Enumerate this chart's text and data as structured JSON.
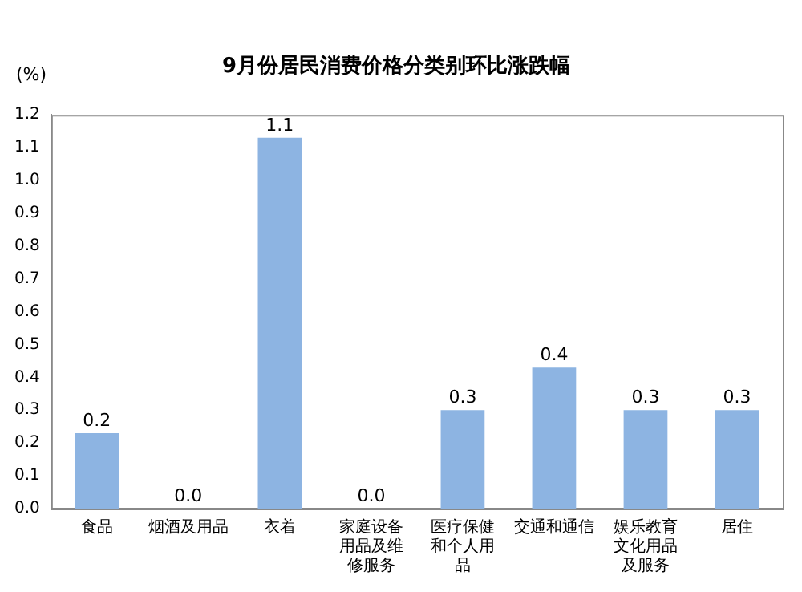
{
  "chart_data": {
    "type": "bar",
    "title": "9月份居民消费价格分类别环比涨跌幅",
    "ylabel": "(%)",
    "categories": [
      "食品",
      "烟酒及用品",
      "衣着",
      "家庭设备用品及维修服务",
      "医疗保健和个人用品",
      "交通和通信",
      "娱乐教育文化用品及服务",
      "居住"
    ],
    "values": [
      0.23,
      0,
      1.13,
      0,
      0.3,
      0.43,
      0.3,
      0.3
    ],
    "value_labels": [
      "0.2",
      "0.0",
      "1.1",
      "0.0",
      "0.3",
      "0.4",
      "0.3",
      "0.3"
    ],
    "color": "#8db4e2",
    "ylim": [
      0,
      1.2
    ],
    "yticks": [
      {
        "value": 0,
        "label": "0.0"
      },
      0.1,
      0.2,
      0.3,
      0.4,
      0.5,
      0.6,
      0.7,
      0.8,
      0.9,
      {
        "value": 1,
        "label": "1.0"
      },
      1.1,
      1.2
    ],
    "grid": false,
    "legend": false
  }
}
